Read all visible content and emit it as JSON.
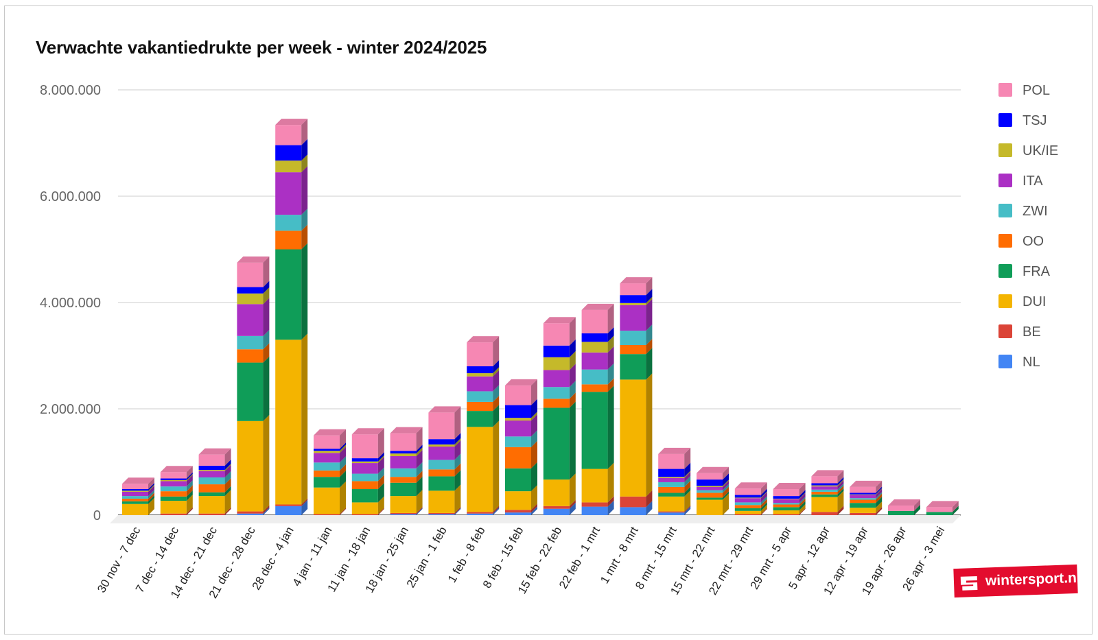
{
  "chart_data": {
    "type": "bar",
    "stacked": true,
    "title": "Verwachte vakantiedrukte per week - winter 2024/2025",
    "xlabel": "",
    "ylabel": "",
    "ylim": [
      0,
      8000000
    ],
    "yticks": [
      0,
      2000000,
      4000000,
      6000000,
      8000000
    ],
    "ytick_labels": [
      "0",
      "2.000.000",
      "4.000.000",
      "6.000.000",
      "8.000.000"
    ],
    "grid": true,
    "legend_position": "right",
    "categories": [
      "30 nov - 7 dec",
      "7 dec - 14 dec",
      "14 dec - 21 dec",
      "21 dec - 28 dec",
      "28 dec - 4 jan",
      "4 jan - 11 jan",
      "11 jan - 18 jan",
      "18 jan - 25 jan",
      "25 jan - 1 feb",
      "1 feb - 8 feb",
      "8 feb - 15 feb",
      "15 feb - 22 feb",
      "22 feb - 1 mrt",
      "1 mrt - 8 mrt",
      "8 mrt - 15 mrt",
      "15 mrt - 22 mrt",
      "22 mrt - 29 mrt",
      "29 mrt - 5 apr",
      "5 apr - 12 apr",
      "12 apr - 19 apr",
      "19 apr - 26 apr",
      "26 apr - 3 mei"
    ],
    "series": [
      {
        "name": "NL",
        "color": "#4285f4",
        "values": [
          0,
          0,
          0,
          30000,
          170000,
          0,
          0,
          20000,
          20000,
          30000,
          50000,
          120000,
          160000,
          150000,
          50000,
          0,
          0,
          0,
          0,
          0,
          0,
          0
        ]
      },
      {
        "name": "BE",
        "color": "#db4437",
        "values": [
          0,
          30000,
          30000,
          40000,
          30000,
          20000,
          20000,
          20000,
          20000,
          30000,
          50000,
          50000,
          80000,
          200000,
          20000,
          0,
          20000,
          20000,
          60000,
          40000,
          0,
          0
        ]
      },
      {
        "name": "DUI",
        "color": "#f4b400",
        "values": [
          210000,
          240000,
          330000,
          1700000,
          3100000,
          500000,
          220000,
          320000,
          420000,
          1600000,
          350000,
          500000,
          630000,
          2200000,
          280000,
          290000,
          60000,
          70000,
          280000,
          100000,
          0,
          0
        ]
      },
      {
        "name": "FRA",
        "color": "#0f9d58",
        "values": [
          50000,
          80000,
          70000,
          1100000,
          1700000,
          200000,
          250000,
          250000,
          270000,
          300000,
          430000,
          1350000,
          1450000,
          480000,
          70000,
          40000,
          50000,
          60000,
          50000,
          90000,
          80000,
          60000
        ]
      },
      {
        "name": "OO",
        "color": "#ff6d01",
        "values": [
          50000,
          100000,
          150000,
          250000,
          350000,
          120000,
          150000,
          110000,
          130000,
          170000,
          400000,
          170000,
          140000,
          170000,
          110000,
          90000,
          60000,
          50000,
          50000,
          60000,
          0,
          0
        ]
      },
      {
        "name": "ZWI",
        "color": "#46bdc6",
        "values": [
          50000,
          90000,
          130000,
          250000,
          300000,
          150000,
          140000,
          160000,
          180000,
          200000,
          200000,
          220000,
          280000,
          270000,
          90000,
          50000,
          50000,
          30000,
          40000,
          30000,
          0,
          0
        ]
      },
      {
        "name": "ITA",
        "color": "#ab30c4",
        "values": [
          80000,
          100000,
          120000,
          600000,
          800000,
          180000,
          200000,
          230000,
          250000,
          280000,
          300000,
          320000,
          320000,
          480000,
          80000,
          60000,
          80000,
          70000,
          60000,
          60000,
          0,
          0
        ]
      },
      {
        "name": "UK/IE",
        "color": "#c5b92a",
        "values": [
          20000,
          20000,
          20000,
          200000,
          220000,
          40000,
          30000,
          50000,
          40000,
          60000,
          50000,
          240000,
          200000,
          40000,
          20000,
          20000,
          10000,
          10000,
          20000,
          10000,
          0,
          0
        ]
      },
      {
        "name": "TSJ",
        "color": "#0000ff",
        "values": [
          30000,
          30000,
          80000,
          120000,
          290000,
          40000,
          60000,
          50000,
          100000,
          130000,
          240000,
          220000,
          160000,
          150000,
          150000,
          120000,
          50000,
          50000,
          40000,
          30000,
          0,
          0
        ]
      },
      {
        "name": "POL",
        "color": "#f687b3",
        "values": [
          100000,
          120000,
          210000,
          460000,
          380000,
          250000,
          450000,
          330000,
          500000,
          450000,
          370000,
          420000,
          440000,
          220000,
          280000,
          120000,
          120000,
          130000,
          130000,
          110000,
          100000,
          90000
        ]
      }
    ]
  },
  "brand": {
    "name": "wintersport.nl",
    "color": "#e30c2e"
  }
}
